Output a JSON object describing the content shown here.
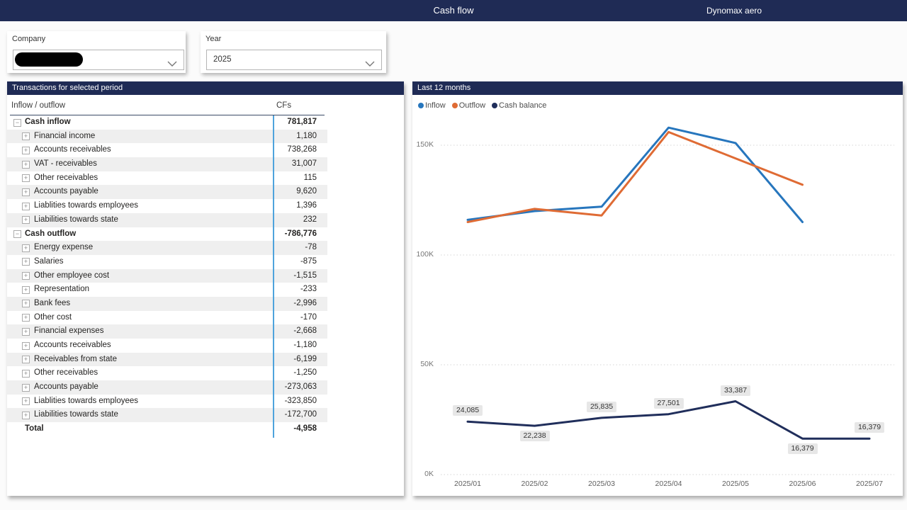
{
  "topbar": {
    "title": "Cash flow",
    "brand": "Dynomax aero"
  },
  "slicers": {
    "company": {
      "label": "Company",
      "value": "",
      "redacted": true
    },
    "year": {
      "label": "Year",
      "value": "2025"
    }
  },
  "transactions": {
    "title": "Transactions for selected period",
    "columns": {
      "label": "Inflow / outflow",
      "value": "CFs"
    },
    "rows": [
      {
        "label": "Cash inflow",
        "value": "781,817",
        "type": "parent"
      },
      {
        "label": "Financial income",
        "value": "1,180",
        "type": "child"
      },
      {
        "label": "Accounts receivables",
        "value": "738,268",
        "type": "child"
      },
      {
        "label": "VAT - receivables",
        "value": "31,007",
        "type": "child"
      },
      {
        "label": "Other receivables",
        "value": "115",
        "type": "child"
      },
      {
        "label": "Accounts payable",
        "value": "9,620",
        "type": "child"
      },
      {
        "label": "Liablities towards employees",
        "value": "1,396",
        "type": "child"
      },
      {
        "label": "Liabilities towards state",
        "value": "232",
        "type": "child"
      },
      {
        "label": "Cash outflow",
        "value": "-786,776",
        "type": "parent"
      },
      {
        "label": "Energy expense",
        "value": "-78",
        "type": "child"
      },
      {
        "label": "Salaries",
        "value": "-875",
        "type": "child"
      },
      {
        "label": "Other employee cost",
        "value": "-1,515",
        "type": "child"
      },
      {
        "label": "Representation",
        "value": "-233",
        "type": "child"
      },
      {
        "label": "Bank fees",
        "value": "-2,996",
        "type": "child"
      },
      {
        "label": "Other cost",
        "value": "-170",
        "type": "child"
      },
      {
        "label": "Financial expenses",
        "value": "-2,668",
        "type": "child"
      },
      {
        "label": "Accounts receivables",
        "value": "-1,180",
        "type": "child"
      },
      {
        "label": "Receivables from state",
        "value": "-6,199",
        "type": "child"
      },
      {
        "label": "Other receivables",
        "value": "-1,250",
        "type": "child"
      },
      {
        "label": "Accounts payable",
        "value": "-273,063",
        "type": "child"
      },
      {
        "label": "Liablities towards employees",
        "value": "-323,850",
        "type": "child"
      },
      {
        "label": "Liabilities towards state",
        "value": "-172,700",
        "type": "child"
      },
      {
        "label": "Total",
        "value": "-4,958",
        "type": "total"
      }
    ]
  },
  "chart_data": {
    "type": "line",
    "title": "Last 12 months",
    "x": [
      "2025/01",
      "2025/02",
      "2025/03",
      "2025/04",
      "2025/05",
      "2025/06",
      "2025/07"
    ],
    "series": [
      {
        "name": "Inflow",
        "color": "#2776BD",
        "values": [
          116000,
          120000,
          122000,
          158000,
          151000,
          115000,
          null
        ]
      },
      {
        "name": "Outflow",
        "color": "#DF6B34",
        "values": [
          115000,
          121000,
          118000,
          156000,
          144000,
          132000,
          null
        ]
      },
      {
        "name": "Cash balance",
        "color": "#202E5B",
        "values": [
          24085,
          22238,
          25835,
          27501,
          33387,
          16379,
          16379
        ],
        "data_labels": true,
        "label_side": [
          "above",
          "below",
          "above",
          "above",
          "above",
          "below",
          "above"
        ]
      }
    ],
    "ylim": [
      0,
      170000
    ],
    "ytick_values": [
      0,
      50000,
      100000,
      150000
    ],
    "ytick_labels": [
      "0K",
      "50K",
      "100K",
      "150K"
    ],
    "grid": "dotted",
    "legend_position": "top-left"
  },
  "colors": {
    "navy": "#1F2B55",
    "inflow": "#2776BD",
    "outflow": "#DF6B34",
    "cash_balance": "#202E5B",
    "column_separator": "#4FA3DC"
  }
}
